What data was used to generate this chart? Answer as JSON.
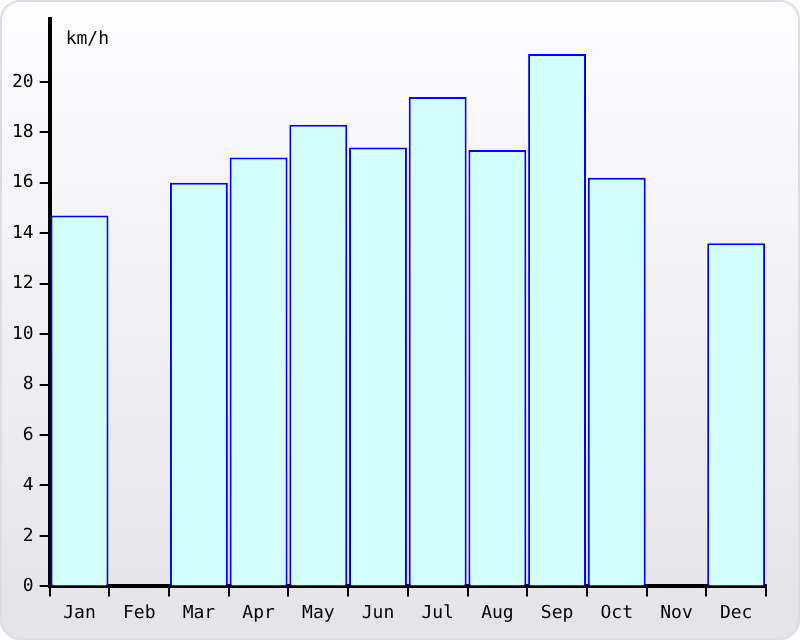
{
  "chart_data": {
    "type": "bar",
    "ylabel": "km/h",
    "categories": [
      "Jan",
      "Feb",
      "Mar",
      "Apr",
      "May",
      "Jun",
      "Jul",
      "Aug",
      "Sep",
      "Oct",
      "Nov",
      "Dec"
    ],
    "values": [
      14.7,
      null,
      16.0,
      17.0,
      18.3,
      17.4,
      19.4,
      17.3,
      21.1,
      16.2,
      null,
      13.6
    ],
    "color": "#d4ffff",
    "ylim": [
      0,
      22.5
    ],
    "yticks": [
      0,
      2,
      4,
      6,
      8,
      10,
      12,
      14,
      16,
      18,
      20
    ],
    "grid": false,
    "legend": false
  }
}
